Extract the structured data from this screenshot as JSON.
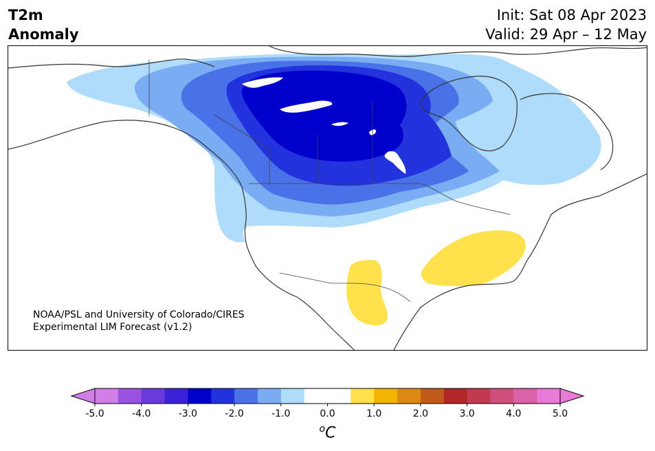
{
  "header": {
    "title_line1": "T2m",
    "title_line2": "Anomaly",
    "init": "Init: Sat 08 Apr 2023",
    "valid": "Valid: 29 Apr – 12 May"
  },
  "credit": {
    "line1": "NOAA/PSL and University of Colorado/CIRES",
    "line2": "Experimental LIM Forecast (v1.2)"
  },
  "colorbar": {
    "unit_label": "°C",
    "unit_sup": "o",
    "unit_main": "C",
    "ticks": [
      "-5.0",
      "-4.0",
      "-3.0",
      "-2.0",
      "-1.0",
      "0.0",
      "1.0",
      "2.0",
      "3.0",
      "4.0",
      "5.0"
    ],
    "tick_values": [
      -5,
      -4,
      -3,
      -2,
      -1,
      0,
      1,
      2,
      3,
      4,
      5
    ],
    "min": -5,
    "max": 5,
    "step": 0.5,
    "under_color": "#d27ee8",
    "over_color": "#e87ad8",
    "colors": [
      "#d27ee8",
      "#9b52e0",
      "#6a3bdc",
      "#3c22d6",
      "#0000cd",
      "#2233dd",
      "#4a72e8",
      "#79acf2",
      "#aedcfa",
      "#ffffff",
      "#ffffff",
      "#ffe14c",
      "#f2b400",
      "#dc8a14",
      "#c25a1a",
      "#b02828",
      "#c23a50",
      "#cf4f7c",
      "#dc62a8",
      "#e87ad8"
    ]
  },
  "map": {
    "region": "North America",
    "cold_anomaly_center": "central Canada",
    "warm_anomaly_regions": [
      "southeastern United States",
      "southwestern United States / northern Mexico"
    ]
  }
}
